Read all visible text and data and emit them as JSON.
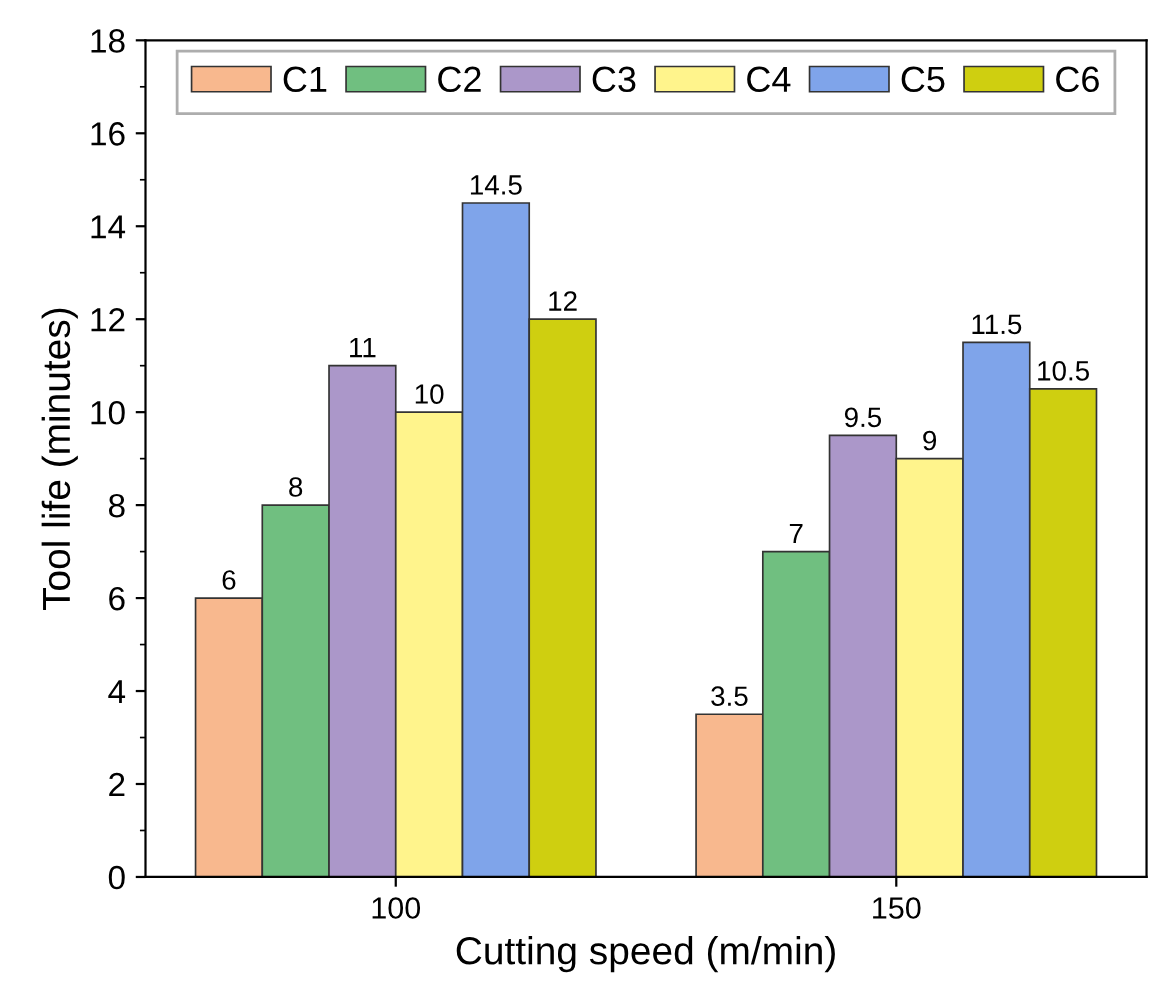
{
  "chart_data": {
    "type": "bar",
    "xlabel": "Cutting speed (m/min)",
    "ylabel": "Tool life (minutes)",
    "categories": [
      "100",
      "150"
    ],
    "series": [
      {
        "name": "C1",
        "color": "#f8b88e",
        "values": [
          6,
          3.5
        ]
      },
      {
        "name": "C2",
        "color": "#70bf80",
        "values": [
          8,
          7
        ]
      },
      {
        "name": "C3",
        "color": "#ab97c9",
        "values": [
          11,
          9.5
        ]
      },
      {
        "name": "C4",
        "color": "#fff48c",
        "values": [
          10,
          9
        ]
      },
      {
        "name": "C5",
        "color": "#7fa4ea",
        "values": [
          14.5,
          11.5
        ]
      },
      {
        "name": "C6",
        "color": "#cfcf10",
        "values": [
          12,
          10.5
        ]
      }
    ],
    "ylim": [
      0,
      18
    ],
    "yticks": [
      0,
      2,
      4,
      6,
      8,
      10,
      12,
      14,
      16,
      18
    ],
    "data_labels": true,
    "legend": "top",
    "grid": false
  }
}
